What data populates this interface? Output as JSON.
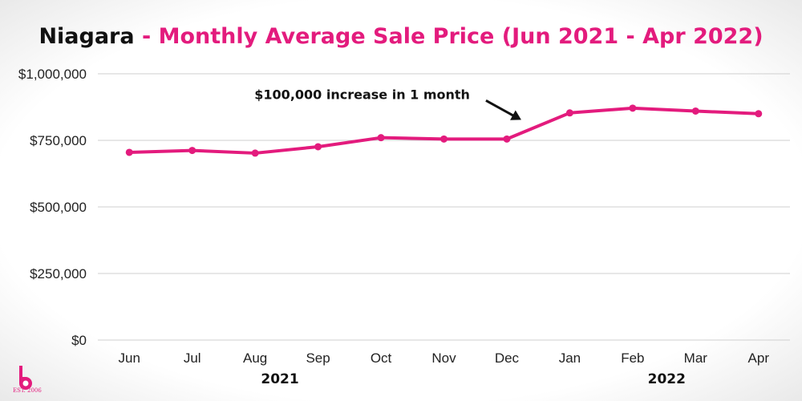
{
  "title": {
    "region": "Niagara",
    "rest": " - Monthly Average Sale Price (Jun 2021 - Apr 2022)"
  },
  "colors": {
    "line": "#e31b7d",
    "title_accent": "#e31b7d",
    "grid": "#cfcfcf"
  },
  "logo": {
    "icon": "brand-logo-icon",
    "text": "EST. 2006"
  },
  "chart_data": {
    "type": "line",
    "categories": [
      "Jun",
      "Jul",
      "Aug",
      "Sep",
      "Oct",
      "Nov",
      "Dec",
      "Jan",
      "Feb",
      "Mar",
      "Apr"
    ],
    "year_labels": [
      {
        "label": "2021",
        "anchor_category": "Oct"
      },
      {
        "label": "2022",
        "anchor_category": "Mar"
      }
    ],
    "series": [
      {
        "values": [
          705000,
          712000,
          702000,
          726000,
          760000,
          755000,
          755000,
          853000,
          871000,
          860000,
          850000
        ]
      }
    ],
    "y_ticks": [
      {
        "value": 0,
        "label": "$0"
      },
      {
        "value": 250000,
        "label": "$250,000"
      },
      {
        "value": 500000,
        "label": "$500,000"
      },
      {
        "value": 750000,
        "label": "$750,000"
      },
      {
        "value": 1000000,
        "label": "$1,000,000"
      }
    ],
    "ylim": [
      0,
      1000000
    ],
    "grid": true,
    "xlabel": "",
    "ylabel": "",
    "annotation": {
      "text": "$100,000 increase in 1 month",
      "points_to_category": "Dec"
    }
  }
}
